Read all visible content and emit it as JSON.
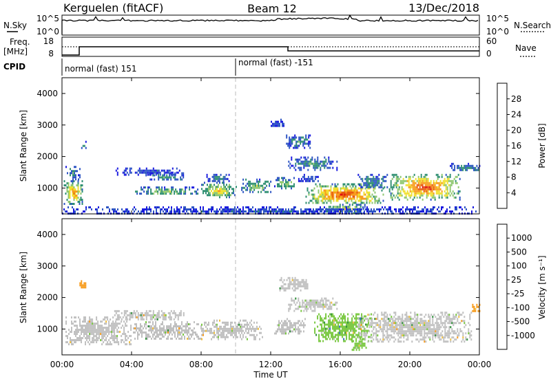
{
  "header": {
    "station": "Kerguelen (fitACF)",
    "beam": "Beam 12",
    "date": "13/Dec/2018"
  },
  "nsky_panel": {
    "left_label": "N.Sky",
    "right_label": "N.Search",
    "left_ticks": [
      "10^5",
      "10^0"
    ],
    "right_ticks": [
      "10^5",
      "10^0"
    ]
  },
  "freq_panel": {
    "left_label_top": "Freq.",
    "left_label_bottom": "[MHz]",
    "right_label": "Nave",
    "left_ticks": [
      "18",
      "8"
    ],
    "right_ticks": [
      "60",
      "0"
    ]
  },
  "cpid_panel": {
    "label": "CPID",
    "segments": [
      {
        "label": "normal (fast) 151",
        "start_hour": 0,
        "end_hour": 10
      },
      {
        "label": "normal (fast) -151",
        "start_hour": 10,
        "end_hour": 24
      }
    ]
  },
  "x_axis": {
    "label": "Time UT",
    "tick_labels": [
      "00:00",
      "04:00",
      "08:00",
      "12:00",
      "16:00",
      "20:00",
      "00:00"
    ],
    "tick_hours": [
      0,
      4,
      8,
      12,
      16,
      20,
      24
    ]
  },
  "chart_data": [
    {
      "type": "heatmap",
      "name": "power",
      "ylabel": "Slant Range [km]",
      "ylim": [
        180,
        4500
      ],
      "xlim_hours": [
        0,
        24
      ],
      "y_ticks": [
        "1000",
        "2000",
        "3000",
        "4000"
      ],
      "y_tick_values": [
        1000,
        2000,
        3000,
        4000
      ],
      "colorbar_label": "Power [dB]",
      "colorbar_ticks": [
        "28",
        "24",
        "20",
        "16",
        "12",
        "8",
        "4"
      ],
      "colorbar_colors": [
        "#1a1ae0",
        "#2e55c4",
        "#2f8f72",
        "#8fc870",
        "#f0e030",
        "#f79c1e",
        "#e85a10",
        "#e01010"
      ],
      "blobs": [
        {
          "t0": 0.1,
          "t1": 1.2,
          "r0": 500,
          "r1": 1250,
          "level": 5
        },
        {
          "t0": 0.2,
          "t1": 1.0,
          "r0": 1300,
          "r1": 1700,
          "level": 2
        },
        {
          "t0": 1.1,
          "t1": 1.4,
          "r0": 2250,
          "r1": 2500,
          "level": 2
        },
        {
          "t0": 3.0,
          "t1": 6.8,
          "r0": 1450,
          "r1": 1650,
          "level": 1
        },
        {
          "t0": 4.2,
          "t1": 7.8,
          "r0": 800,
          "r1": 1050,
          "level": 3
        },
        {
          "t0": 4.8,
          "t1": 7.0,
          "r0": 1250,
          "r1": 1500,
          "level": 2
        },
        {
          "t0": 8.0,
          "t1": 10.0,
          "r0": 700,
          "r1": 1200,
          "level": 4
        },
        {
          "t0": 8.3,
          "t1": 9.6,
          "r0": 1200,
          "r1": 1450,
          "level": 2
        },
        {
          "t0": 10.3,
          "t1": 12.0,
          "r0": 850,
          "r1": 1300,
          "level": 3
        },
        {
          "t0": 12.2,
          "t1": 13.5,
          "r0": 1000,
          "r1": 1350,
          "level": 3
        },
        {
          "t0": 12.0,
          "t1": 12.8,
          "r0": 2950,
          "r1": 3200,
          "level": 1
        },
        {
          "t0": 12.8,
          "t1": 14.3,
          "r0": 2300,
          "r1": 2700,
          "level": 2
        },
        {
          "t0": 13.0,
          "t1": 15.8,
          "r0": 1600,
          "r1": 2000,
          "level": 2
        },
        {
          "t0": 13.5,
          "t1": 14.8,
          "r0": 1200,
          "r1": 1450,
          "level": 1
        },
        {
          "t0": 14.0,
          "t1": 18.5,
          "r0": 500,
          "r1": 1150,
          "level": 6
        },
        {
          "t0": 15.0,
          "t1": 17.5,
          "r0": 200,
          "r1": 500,
          "level": 4
        },
        {
          "t0": 17.0,
          "t1": 18.8,
          "r0": 1000,
          "r1": 1450,
          "level": 2
        },
        {
          "t0": 18.8,
          "t1": 22.9,
          "r0": 650,
          "r1": 1450,
          "level": 6
        },
        {
          "t0": 22.3,
          "t1": 23.8,
          "r0": 1550,
          "r1": 1800,
          "level": 2
        },
        {
          "t0": 23.5,
          "t1": 24.0,
          "r0": 1550,
          "r1": 1800,
          "level": 2
        },
        {
          "t0": 0.0,
          "t1": 24.0,
          "r0": 180,
          "r1": 420,
          "level": 1
        }
      ]
    },
    {
      "type": "heatmap",
      "name": "velocity",
      "ylabel": "Slant Range [km]",
      "ylim": [
        180,
        4500
      ],
      "xlim_hours": [
        0,
        24
      ],
      "y_ticks": [
        "1000",
        "2000",
        "3000",
        "4000"
      ],
      "y_tick_values": [
        1000,
        2000,
        3000,
        4000
      ],
      "colorbar_label": "Velocity [m s⁻¹]",
      "colorbar_ticks": [
        "1000",
        "500",
        "100",
        "25",
        "-25",
        "-100",
        "-500",
        "-1000"
      ],
      "colorbar_colors": [
        "#2030d0",
        "#3a70c0",
        "#2f8f3a",
        "#79c840",
        "#c0c0c0",
        "#f0c040",
        "#f79c1e",
        "#e85010",
        "#e01010"
      ],
      "blobs": [
        {
          "t0": 0.2,
          "t1": 4.0,
          "r0": 500,
          "r1": 1400,
          "level": 4
        },
        {
          "t0": 1.0,
          "t1": 1.4,
          "r0": 2300,
          "r1": 2550,
          "level": 6
        },
        {
          "t0": 3.0,
          "t1": 7.0,
          "r0": 1300,
          "r1": 1600,
          "level": 4
        },
        {
          "t0": 4.0,
          "t1": 8.0,
          "r0": 700,
          "r1": 1250,
          "level": 4
        },
        {
          "t0": 8.0,
          "t1": 11.5,
          "r0": 700,
          "r1": 1300,
          "level": 4
        },
        {
          "t0": 12.5,
          "t1": 14.3,
          "r0": 2250,
          "r1": 2650,
          "level": 4
        },
        {
          "t0": 13.0,
          "t1": 15.8,
          "r0": 1600,
          "r1": 2000,
          "level": 4
        },
        {
          "t0": 12.2,
          "t1": 14.0,
          "r0": 850,
          "r1": 1350,
          "level": 4
        },
        {
          "t0": 14.5,
          "t1": 17.8,
          "r0": 600,
          "r1": 1500,
          "level": 3
        },
        {
          "t0": 16.5,
          "t1": 17.5,
          "r0": 350,
          "r1": 700,
          "level": 3
        },
        {
          "t0": 17.0,
          "t1": 23.5,
          "r0": 600,
          "r1": 1550,
          "level": 4
        },
        {
          "t0": 23.5,
          "t1": 24.0,
          "r0": 1550,
          "r1": 1800,
          "level": 6
        }
      ]
    }
  ]
}
